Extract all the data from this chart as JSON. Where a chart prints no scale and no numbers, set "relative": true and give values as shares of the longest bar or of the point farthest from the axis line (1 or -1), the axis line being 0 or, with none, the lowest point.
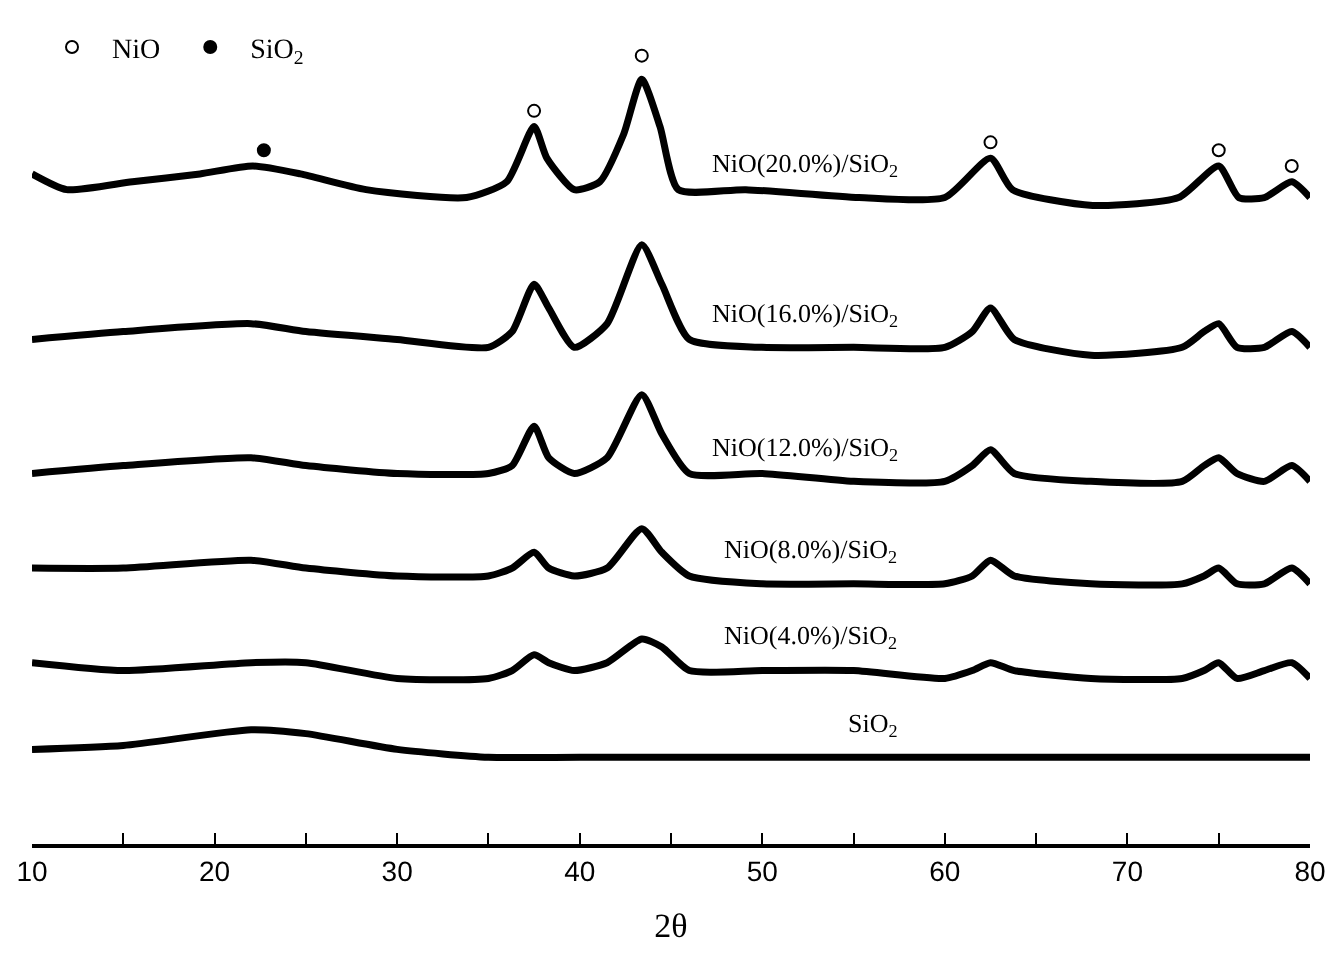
{
  "chart_data": {
    "type": "line",
    "xlabel": "2θ",
    "relative": true,
    "legend": "top left",
    "grid": false,
    "line_style": "solid",
    "xlim": [
      10,
      80
    ],
    "xticks": [
      10,
      {
        "value": 15,
        "label": null
      },
      20,
      {
        "value": 25,
        "label": null
      },
      30,
      {
        "value": 35,
        "label": null
      },
      40,
      {
        "value": 45,
        "label": null
      },
      50,
      {
        "value": 55,
        "label": null
      },
      60,
      {
        "value": 65,
        "label": null
      },
      70,
      {
        "value": 75,
        "label": null
      },
      80
    ],
    "series": [
      {
        "name": "NiO(20.0%)/SiO$_{2}$",
        "color": "#000000",
        "x": [
          10,
          11.9,
          15.5,
          19.2,
          22.1,
          24.7,
          28.3,
          33.8,
          36,
          37.5,
          38.2,
          39.7,
          41.1,
          42.4,
          43.4,
          44.4,
          45.4,
          49.1,
          55.3,
          60,
          62.5,
          63.7,
          68.1,
          72.8,
          75,
          76.1,
          77.5,
          79,
          80
        ],
        "values": [
          0.85,
          0.83,
          0.84,
          0.85,
          0.86,
          0.85,
          0.83,
          0.82,
          0.84,
          0.91,
          0.87,
          0.83,
          0.84,
          0.9,
          0.97,
          0.91,
          0.83,
          0.83,
          0.82,
          0.82,
          0.87,
          0.83,
          0.81,
          0.82,
          0.86,
          0.82,
          0.82,
          0.84,
          0.82
        ]
      },
      {
        "name": "NiO(16.0%)/SiO$_{2}$",
        "color": "#000000",
        "x": [
          10,
          15,
          22,
          25,
          30,
          35,
          36.3,
          37.5,
          38.3,
          39.7,
          41.5,
          43.4,
          44.5,
          46,
          50,
          55,
          60,
          61.5,
          62.5,
          63.8,
          68,
          73,
          74.2,
          75,
          76,
          77.5,
          79,
          80
        ],
        "values": [
          0.64,
          0.65,
          0.66,
          0.65,
          0.64,
          0.63,
          0.65,
          0.71,
          0.68,
          0.63,
          0.66,
          0.76,
          0.71,
          0.64,
          0.63,
          0.63,
          0.63,
          0.65,
          0.68,
          0.64,
          0.62,
          0.63,
          0.65,
          0.66,
          0.63,
          0.63,
          0.65,
          0.63
        ]
      },
      {
        "name": "NiO(12.0%)/SiO$_{2}$",
        "color": "#000000",
        "x": [
          10,
          15,
          22,
          25,
          30,
          35,
          36.3,
          37.5,
          38.3,
          39.7,
          41.5,
          43.4,
          44.5,
          46,
          50,
          55,
          60,
          61.5,
          62.5,
          63.8,
          68,
          73,
          74.2,
          75,
          76,
          77.5,
          79,
          80
        ],
        "values": [
          0.47,
          0.48,
          0.49,
          0.48,
          0.47,
          0.47,
          0.48,
          0.53,
          0.49,
          0.47,
          0.49,
          0.57,
          0.52,
          0.47,
          0.47,
          0.46,
          0.46,
          0.48,
          0.5,
          0.47,
          0.46,
          0.46,
          0.48,
          0.49,
          0.47,
          0.46,
          0.48,
          0.46
        ]
      },
      {
        "name": "NiO(8.0%)/SiO$_{2}$",
        "color": "#000000",
        "x": [
          10,
          15,
          22,
          25,
          30,
          35,
          36.3,
          37.5,
          38.3,
          39.7,
          41.5,
          43.4,
          44.5,
          46,
          50,
          55,
          60,
          61.5,
          62.5,
          63.8,
          68,
          73,
          74.2,
          75,
          76,
          77.5,
          79,
          80
        ],
        "values": [
          0.35,
          0.35,
          0.36,
          0.35,
          0.34,
          0.34,
          0.35,
          0.37,
          0.35,
          0.34,
          0.35,
          0.4,
          0.37,
          0.34,
          0.33,
          0.33,
          0.33,
          0.34,
          0.36,
          0.34,
          0.33,
          0.33,
          0.34,
          0.35,
          0.33,
          0.33,
          0.35,
          0.33
        ]
      },
      {
        "name": "NiO(4.0%)/SiO$_{2}$",
        "color": "#000000",
        "x": [
          10,
          15,
          22,
          25,
          30,
          35,
          36.3,
          37.5,
          38.3,
          39.7,
          41.5,
          43.4,
          44.5,
          46,
          50,
          55,
          60,
          61.5,
          62.5,
          63.8,
          68,
          73,
          74.2,
          75,
          76,
          77.5,
          79,
          80
        ],
        "values": [
          0.23,
          0.22,
          0.23,
          0.23,
          0.21,
          0.21,
          0.22,
          0.24,
          0.23,
          0.22,
          0.23,
          0.26,
          0.25,
          0.22,
          0.22,
          0.22,
          0.21,
          0.22,
          0.23,
          0.22,
          0.21,
          0.21,
          0.22,
          0.23,
          0.21,
          0.22,
          0.23,
          0.21
        ]
      },
      {
        "name": "SiO$_{2}$",
        "color": "#000000",
        "x": [
          10,
          15,
          22,
          25,
          30,
          35,
          40,
          50,
          60,
          70,
          80
        ],
        "values": [
          0.12,
          0.125,
          0.145,
          0.14,
          0.12,
          0.11,
          0.11,
          0.11,
          0.11,
          0.11,
          0.11
        ]
      },
      {
        "name": "NiO",
        "type": "scatter",
        "marker": "circle",
        "color": "#ffffff",
        "x": [
          37.5,
          43.4,
          62.5,
          75,
          79
        ],
        "values": [
          0.93,
          1.0,
          0.89,
          0.88,
          0.86
        ]
      },
      {
        "name": "SiO$_{2}$",
        "type": "scatter",
        "marker": "circle",
        "color": "#000000",
        "x": [
          22.7
        ],
        "values": [
          0.88
        ]
      }
    ]
  }
}
